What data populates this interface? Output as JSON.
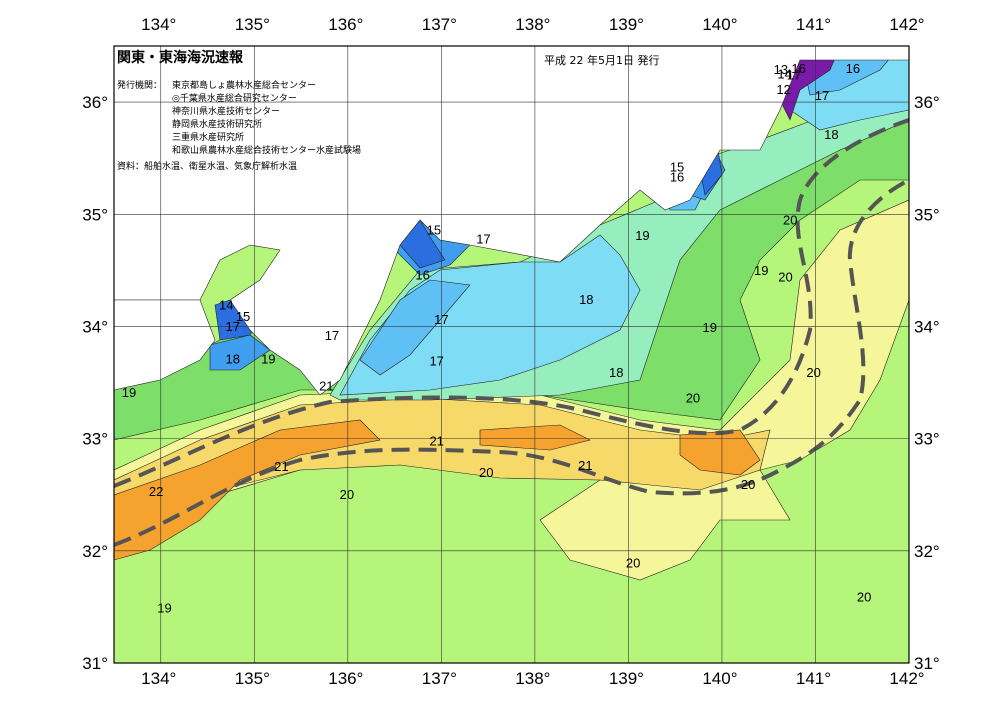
{
  "header": {
    "title": "関東・東海海況速報",
    "issue_date": "平成 22 年5月1日 発行",
    "agency_label": "発行機関：",
    "agencies": [
      "東京都島しょ農林水産総合センター",
      "◎千葉県水産総合研究センター",
      "神奈川県水産技術センター",
      "静岡県水産技術研究所",
      "三重県水産研究所",
      "和歌山県農林水産総合技術センター水産試験場"
    ],
    "source": "資料：船舶水温、衛星水温、気象庁解析水温"
  },
  "axes": {
    "lon_ticks": [
      "134°",
      "135°",
      "136°",
      "137°",
      "138°",
      "139°",
      "140°",
      "141°",
      "142°"
    ],
    "lat_ticks": [
      "36°",
      "35°",
      "34°",
      "33°",
      "32°",
      "31°"
    ],
    "lon_range": [
      133.5,
      142
    ],
    "lat_range": [
      31,
      36.5
    ]
  },
  "colors": {
    "c13": "#7a1aa8",
    "c14": "#2a6ee0",
    "c15": "#3f9ef0",
    "c16": "#5ec0f5",
    "c17": "#7fdcf5",
    "c18": "#96eebf",
    "c19": "#7dde6a",
    "c20": "#b4f57a",
    "c20b": "#f5f59a",
    "c21": "#f7d96a",
    "c22": "#f5a22e",
    "land": "#ffffff",
    "kuroshio_axis": "#555555"
  },
  "isotherm_labels": [
    {
      "text": "13",
      "lon": 140.63,
      "lat": 36.25
    },
    {
      "text": "16",
      "lon": 140.82,
      "lat": 36.26
    },
    {
      "text": "16",
      "lon": 141.4,
      "lat": 36.26
    },
    {
      "text": "14",
      "lon": 140.67,
      "lat": 36.21
    },
    {
      "text": "12",
      "lon": 140.66,
      "lat": 36.07
    },
    {
      "text": "17",
      "lon": 140.77,
      "lat": 36.2
    },
    {
      "text": "17",
      "lon": 141.07,
      "lat": 36.02
    },
    {
      "text": "18",
      "lon": 141.17,
      "lat": 35.67
    },
    {
      "text": "15",
      "lon": 139.52,
      "lat": 35.38
    },
    {
      "text": "16",
      "lon": 139.52,
      "lat": 35.29
    },
    {
      "text": "15",
      "lon": 136.92,
      "lat": 34.82
    },
    {
      "text": "17",
      "lon": 137.45,
      "lat": 34.74
    },
    {
      "text": "16",
      "lon": 136.8,
      "lat": 34.42
    },
    {
      "text": "19",
      "lon": 139.15,
      "lat": 34.77
    },
    {
      "text": "20",
      "lon": 140.73,
      "lat": 34.91
    },
    {
      "text": "19",
      "lon": 140.42,
      "lat": 34.46
    },
    {
      "text": "20",
      "lon": 140.68,
      "lat": 34.4
    },
    {
      "text": "18",
      "lon": 138.55,
      "lat": 34.2
    },
    {
      "text": "17",
      "lon": 137.0,
      "lat": 34.02
    },
    {
      "text": "19",
      "lon": 139.87,
      "lat": 33.95
    },
    {
      "text": "14",
      "lon": 134.7,
      "lat": 34.15
    },
    {
      "text": "15",
      "lon": 134.88,
      "lat": 34.05
    },
    {
      "text": "17",
      "lon": 134.77,
      "lat": 33.96
    },
    {
      "text": "17",
      "lon": 135.83,
      "lat": 33.88
    },
    {
      "text": "18",
      "lon": 134.77,
      "lat": 33.67
    },
    {
      "text": "19",
      "lon": 135.15,
      "lat": 33.67
    },
    {
      "text": "19",
      "lon": 133.66,
      "lat": 33.37
    },
    {
      "text": "17",
      "lon": 136.95,
      "lat": 33.65
    },
    {
      "text": "18",
      "lon": 138.87,
      "lat": 33.55
    },
    {
      "text": "20",
      "lon": 140.98,
      "lat": 33.55
    },
    {
      "text": "21",
      "lon": 135.77,
      "lat": 33.43
    },
    {
      "text": "20",
      "lon": 139.69,
      "lat": 33.32
    },
    {
      "text": "21",
      "lon": 136.95,
      "lat": 32.94
    },
    {
      "text": "21",
      "lon": 135.29,
      "lat": 32.71
    },
    {
      "text": "21",
      "lon": 138.54,
      "lat": 32.72
    },
    {
      "text": "20",
      "lon": 137.48,
      "lat": 32.66
    },
    {
      "text": "22",
      "lon": 133.95,
      "lat": 32.49
    },
    {
      "text": "20",
      "lon": 135.99,
      "lat": 32.46
    },
    {
      "text": "20",
      "lon": 140.28,
      "lat": 32.55
    },
    {
      "text": "20",
      "lon": 139.05,
      "lat": 31.85
    },
    {
      "text": "20",
      "lon": 141.52,
      "lat": 31.55
    },
    {
      "text": "19",
      "lon": 134.04,
      "lat": 31.45
    }
  ]
}
